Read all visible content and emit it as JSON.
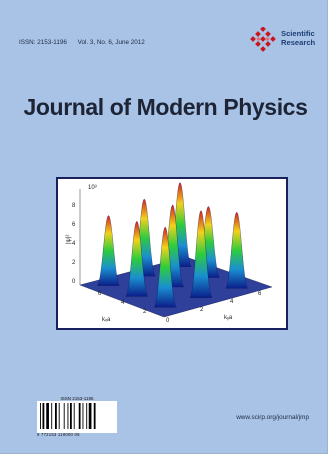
{
  "cover": {
    "issn": "ISSN: 2153-1196",
    "volume": "Vol. 3, No. 6, June 2012",
    "publisher_line1": "Scientific",
    "publisher_line2": "Research",
    "title": "Journal of Modern Physics",
    "website": "www.scirp.org/journal/jmp"
  },
  "figure": {
    "z_scale_label": "10³",
    "z_axis_label": "|ψ|²",
    "z_ticks": [
      "8",
      "6",
      "4",
      "2",
      "0"
    ],
    "x_axis_label": "kₓa",
    "y_axis_label": "kᵧa",
    "x_ticks": [
      "6",
      "4",
      "2",
      "0"
    ],
    "y_ticks": [
      "2",
      "4",
      "6"
    ]
  },
  "barcode": {
    "issn": "ISSN  2153-1196",
    "digits": "9 772153 119000    06"
  },
  "colors": {
    "cover_background": "#a9c3e6",
    "title": "#1d2436",
    "frame_border": "#1a1f5e",
    "publisher_red": "#c8161d"
  }
}
